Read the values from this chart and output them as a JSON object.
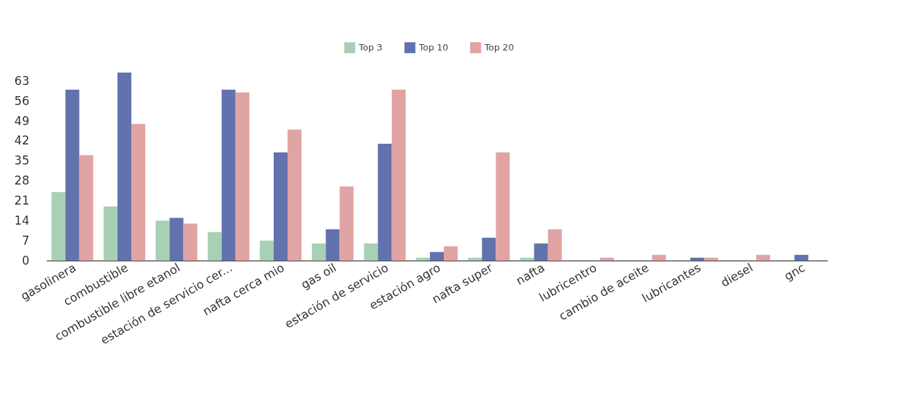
{
  "chart_data": {
    "type": "bar",
    "categories": [
      "gasolinera",
      "combustible",
      "combustible libre etanol",
      "estación de servicio cer...",
      "nafta cerca mio",
      "gas oil",
      "estación de servicio",
      "estación agro",
      "nafta super",
      "nafta",
      "lubricentro",
      "cambio de aceite",
      "lubricantes",
      "diesel",
      "gnc"
    ],
    "series": [
      {
        "name": "Top 3",
        "color": "#a8d0b4",
        "values": [
          24,
          19,
          14,
          10,
          7,
          6,
          6,
          1,
          1,
          1,
          0,
          0,
          0,
          0,
          0
        ]
      },
      {
        "name": "Top 10",
        "color": "#6272ac",
        "values": [
          60,
          66,
          15,
          60,
          38,
          11,
          41,
          3,
          8,
          6,
          0,
          0,
          1,
          0,
          2
        ]
      },
      {
        "name": "Top 20",
        "color": "#e0a4a4",
        "values": [
          37,
          48,
          13,
          59,
          46,
          26,
          60,
          5,
          38,
          11,
          1,
          2,
          1,
          2,
          0
        ]
      }
    ],
    "ylim": [
      0,
      66
    ],
    "yticks": [
      0,
      7,
      14,
      21,
      28,
      35,
      42,
      49,
      56,
      63
    ],
    "grid": false,
    "legend": "top"
  }
}
